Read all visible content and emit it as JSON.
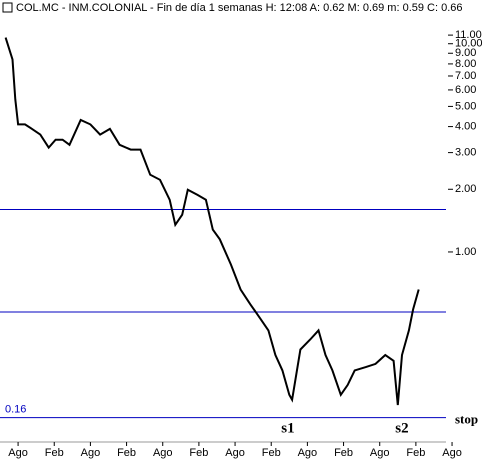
{
  "chart_data": {
    "type": "line",
    "title": "COL.MC - INM.COLONIAL - Fin de día 1 semanas H: 12:08 A: 0.62 M: 0.69 m: 0.59 C: 0.66",
    "log_scale": true,
    "grid": false,
    "color": "#000000",
    "x": [
      4,
      9,
      11,
      13,
      18,
      23,
      29,
      35,
      40,
      45,
      50,
      58,
      65,
      72,
      79,
      86,
      94,
      101,
      108,
      115,
      122,
      126,
      131,
      135,
      142,
      148,
      153,
      158,
      166,
      173,
      180,
      187,
      193,
      198,
      203,
      208,
      210,
      216,
      223,
      229,
      234,
      239,
      245,
      250,
      255,
      263,
      270,
      277,
      283,
      286,
      289,
      294,
      297,
      301
    ],
    "values": [
      10.7,
      8.4,
      5.4,
      4.1,
      4.1,
      3.9,
      3.66,
      3.17,
      3.46,
      3.46,
      3.27,
      4.3,
      4.1,
      3.66,
      3.9,
      3.27,
      3.1,
      3.1,
      2.35,
      2.22,
      1.78,
      1.35,
      1.51,
      1.99,
      1.88,
      1.78,
      1.28,
      1.15,
      0.87,
      0.66,
      0.56,
      0.48,
      0.42,
      0.32,
      0.27,
      0.206,
      0.195,
      0.34,
      0.38,
      0.42,
      0.32,
      0.27,
      0.206,
      0.23,
      0.27,
      0.28,
      0.29,
      0.32,
      0.3,
      0.184,
      0.32,
      0.42,
      0.53,
      0.66
    ],
    "xlim": [
      0,
      330
    ],
    "xticks": [
      {
        "value": 13,
        "label": "Ago"
      },
      {
        "value": 39,
        "label": "Feb"
      },
      {
        "value": 65,
        "label": "Ago"
      },
      {
        "value": 91,
        "label": "Feb"
      },
      {
        "value": 117,
        "label": "Ago"
      },
      {
        "value": 143,
        "label": "Feb"
      },
      {
        "value": 169,
        "label": "Ago"
      },
      {
        "value": 195,
        "label": "Feb"
      },
      {
        "value": 221,
        "label": "Ago"
      },
      {
        "value": 247,
        "label": "Feb"
      },
      {
        "value": 273,
        "label": "Ago"
      },
      {
        "value": 299,
        "label": "Feb"
      },
      {
        "value": 325,
        "label": "Ago"
      }
    ],
    "ylim": [
      0.125,
      13
    ],
    "yticks": [
      {
        "value": 11,
        "label": "11.00"
      },
      {
        "value": 10,
        "label": "10.00"
      },
      {
        "value": 9,
        "label": "9.00"
      },
      {
        "value": 8,
        "label": "8.00"
      },
      {
        "value": 7,
        "label": "7.00"
      },
      {
        "value": 6,
        "label": "6.00"
      },
      {
        "value": 5,
        "label": "5.00"
      },
      {
        "value": 4,
        "label": "4.00"
      },
      {
        "value": 3,
        "label": "3.00"
      },
      {
        "value": 2,
        "label": "2.00"
      },
      {
        "value": 1,
        "label": "1.00"
      }
    ],
    "hlines": [
      {
        "value": 1.6,
        "color": "#0000c0"
      },
      {
        "value": 0.515,
        "color": "#0000c0"
      },
      {
        "value": 0.16,
        "label": "0.16",
        "annotation": "stop",
        "color": "#0000c0"
      }
    ],
    "annotations": [
      {
        "text": "s1",
        "x": 207
      },
      {
        "text": "s2",
        "x": 289
      }
    ]
  }
}
